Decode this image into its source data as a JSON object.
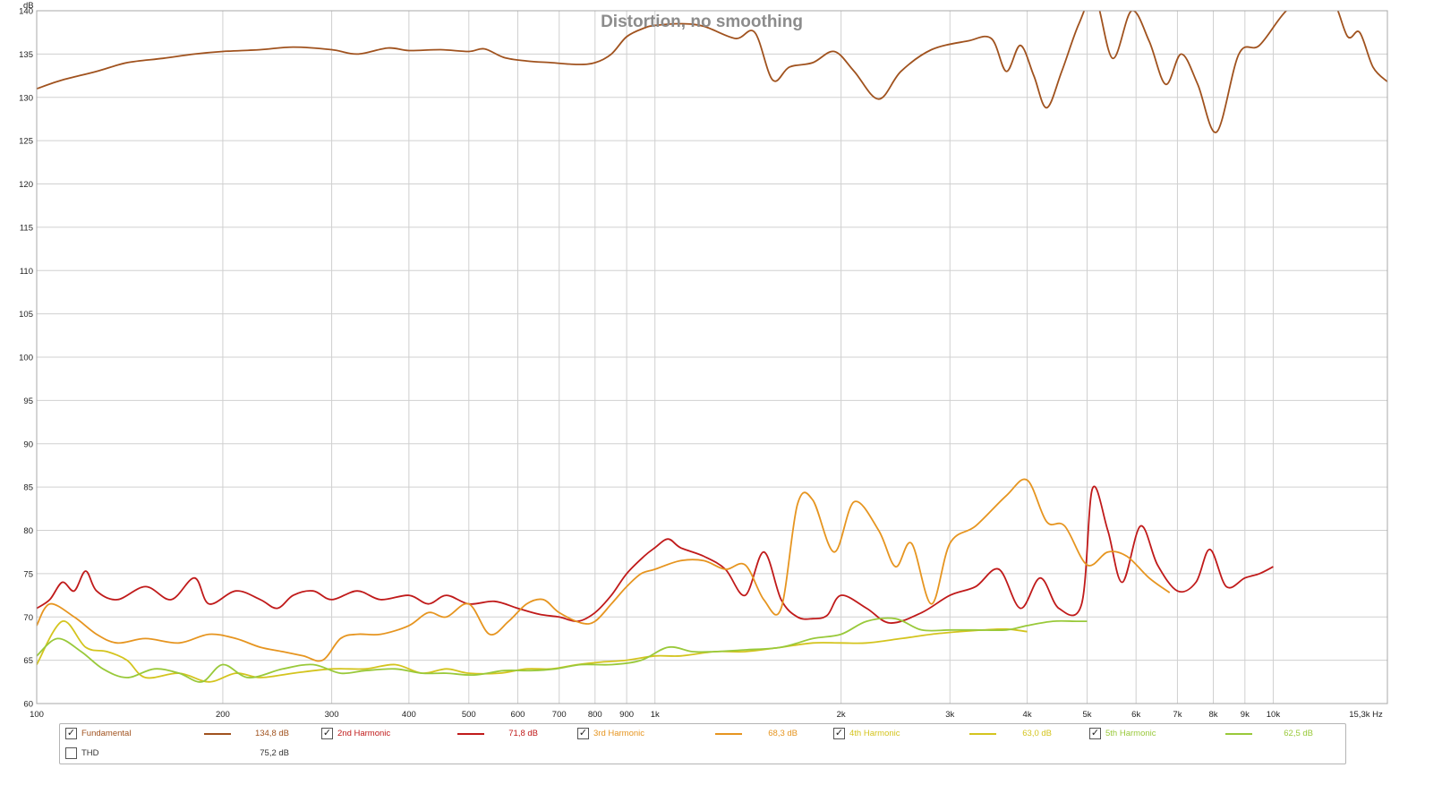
{
  "chart_data": {
    "type": "line",
    "title": "Distortion, no smoothing",
    "ylabel": "dB",
    "xunit": "Hz",
    "xscale": "log",
    "xlim": [
      100,
      15300
    ],
    "ylim": [
      60,
      140
    ],
    "grid": true,
    "yticks": [
      60,
      65,
      70,
      75,
      80,
      85,
      90,
      95,
      100,
      105,
      110,
      115,
      120,
      125,
      130,
      135,
      140
    ],
    "xticks": [
      {
        "value": 100,
        "label": "100"
      },
      {
        "value": 200,
        "label": "200"
      },
      {
        "value": 300,
        "label": "300"
      },
      {
        "value": 400,
        "label": "400"
      },
      {
        "value": 500,
        "label": "500"
      },
      {
        "value": 600,
        "label": "600"
      },
      {
        "value": 700,
        "label": "700"
      },
      {
        "value": 800,
        "label": "800"
      },
      {
        "value": 900,
        "label": "900"
      },
      {
        "value": 1000,
        "label": "1k"
      },
      {
        "value": 2000,
        "label": "2k"
      },
      {
        "value": 3000,
        "label": "3k"
      },
      {
        "value": 4000,
        "label": "4k"
      },
      {
        "value": 5000,
        "label": "5k"
      },
      {
        "value": 6000,
        "label": "6k"
      },
      {
        "value": 7000,
        "label": "7k"
      },
      {
        "value": 8000,
        "label": "8k"
      },
      {
        "value": 9000,
        "label": "9k"
      },
      {
        "value": 10000,
        "label": "10k"
      },
      {
        "value": 15300,
        "label": "15,3k Hz"
      }
    ],
    "series": [
      {
        "name": "Fundamental",
        "color": "#a0521e",
        "legend_value": "134,8 dB",
        "checked": true,
        "points": [
          [
            100,
            131
          ],
          [
            110,
            132
          ],
          [
            125,
            133
          ],
          [
            140,
            134
          ],
          [
            160,
            134.5
          ],
          [
            180,
            135
          ],
          [
            200,
            135.3
          ],
          [
            230,
            135.5
          ],
          [
            260,
            135.8
          ],
          [
            300,
            135.5
          ],
          [
            330,
            135
          ],
          [
            370,
            135.7
          ],
          [
            400,
            135.4
          ],
          [
            450,
            135.5
          ],
          [
            500,
            135.3
          ],
          [
            530,
            135.6
          ],
          [
            570,
            134.6
          ],
          [
            620,
            134.2
          ],
          [
            680,
            134
          ],
          [
            750,
            133.8
          ],
          [
            800,
            134
          ],
          [
            850,
            135
          ],
          [
            900,
            137
          ],
          [
            960,
            138
          ],
          [
            1000,
            138.3
          ],
          [
            1100,
            138.5
          ],
          [
            1200,
            138.2
          ],
          [
            1350,
            136.8
          ],
          [
            1450,
            137.5
          ],
          [
            1550,
            132
          ],
          [
            1650,
            133.5
          ],
          [
            1800,
            134
          ],
          [
            1950,
            135.3
          ],
          [
            2100,
            133
          ],
          [
            2300,
            129.8
          ],
          [
            2500,
            133
          ],
          [
            2800,
            135.5
          ],
          [
            3200,
            136.5
          ],
          [
            3500,
            136.8
          ],
          [
            3700,
            133
          ],
          [
            3900,
            136
          ],
          [
            4100,
            132.5
          ],
          [
            4300,
            128.8
          ],
          [
            4550,
            133
          ],
          [
            4850,
            138.5
          ],
          [
            5150,
            141.5
          ],
          [
            5500,
            134.5
          ],
          [
            5900,
            140
          ],
          [
            6300,
            136.5
          ],
          [
            6700,
            131.5
          ],
          [
            7100,
            135
          ],
          [
            7550,
            131.5
          ],
          [
            8100,
            126
          ],
          [
            8800,
            135
          ],
          [
            9500,
            136
          ],
          [
            10500,
            140
          ],
          [
            11500,
            141.5
          ],
          [
            12500,
            141
          ],
          [
            13200,
            137
          ],
          [
            13800,
            137.5
          ],
          [
            14500,
            133.5
          ],
          [
            15300,
            131.8
          ]
        ]
      },
      {
        "name": "2nd Harmonic",
        "color": "#c01a1a",
        "legend_value": "71,8 dB",
        "checked": true,
        "points": [
          [
            100,
            71
          ],
          [
            105,
            72
          ],
          [
            110,
            74
          ],
          [
            115,
            73
          ],
          [
            120,
            75.3
          ],
          [
            125,
            73
          ],
          [
            135,
            72
          ],
          [
            150,
            73.5
          ],
          [
            165,
            72
          ],
          [
            180,
            74.5
          ],
          [
            190,
            71.5
          ],
          [
            210,
            73
          ],
          [
            230,
            72
          ],
          [
            245,
            71
          ],
          [
            260,
            72.5
          ],
          [
            280,
            73
          ],
          [
            300,
            72
          ],
          [
            330,
            73
          ],
          [
            360,
            72
          ],
          [
            400,
            72.5
          ],
          [
            430,
            71.5
          ],
          [
            460,
            72.5
          ],
          [
            500,
            71.5
          ],
          [
            550,
            71.8
          ],
          [
            600,
            71
          ],
          [
            650,
            70.3
          ],
          [
            700,
            70
          ],
          [
            750,
            69.5
          ],
          [
            800,
            70.5
          ],
          [
            850,
            72.5
          ],
          [
            900,
            75
          ],
          [
            960,
            77
          ],
          [
            1000,
            78
          ],
          [
            1050,
            79
          ],
          [
            1100,
            78
          ],
          [
            1200,
            77
          ],
          [
            1300,
            75.5
          ],
          [
            1400,
            72.5
          ],
          [
            1500,
            77.5
          ],
          [
            1600,
            72
          ],
          [
            1700,
            70
          ],
          [
            1800,
            69.8
          ],
          [
            1900,
            70.2
          ],
          [
            2000,
            72.5
          ],
          [
            2200,
            71
          ],
          [
            2400,
            69.3
          ],
          [
            2700,
            70.5
          ],
          [
            3000,
            72.5
          ],
          [
            3300,
            73.5
          ],
          [
            3600,
            75.5
          ],
          [
            3900,
            71
          ],
          [
            4200,
            74.5
          ],
          [
            4500,
            71
          ],
          [
            4900,
            71.5
          ],
          [
            5100,
            84.8
          ],
          [
            5400,
            80
          ],
          [
            5700,
            74
          ],
          [
            6100,
            80.5
          ],
          [
            6500,
            76
          ],
          [
            7000,
            73
          ],
          [
            7500,
            74
          ],
          [
            7900,
            77.8
          ],
          [
            8400,
            73.5
          ],
          [
            9000,
            74.5
          ],
          [
            9500,
            75
          ],
          [
            10000,
            75.8
          ]
        ]
      },
      {
        "name": "3rd Harmonic",
        "color": "#e69520",
        "legend_value": "68,3 dB",
        "checked": true,
        "points": [
          [
            100,
            69
          ],
          [
            105,
            71.5
          ],
          [
            115,
            70
          ],
          [
            125,
            68
          ],
          [
            135,
            67
          ],
          [
            150,
            67.5
          ],
          [
            170,
            67
          ],
          [
            190,
            68
          ],
          [
            210,
            67.5
          ],
          [
            230,
            66.5
          ],
          [
            250,
            66
          ],
          [
            270,
            65.5
          ],
          [
            290,
            65
          ],
          [
            310,
            67.5
          ],
          [
            330,
            68
          ],
          [
            360,
            68
          ],
          [
            400,
            69
          ],
          [
            430,
            70.5
          ],
          [
            460,
            70
          ],
          [
            500,
            71.5
          ],
          [
            540,
            68
          ],
          [
            580,
            69.5
          ],
          [
            620,
            71.5
          ],
          [
            660,
            72
          ],
          [
            700,
            70.5
          ],
          [
            760,
            69.3
          ],
          [
            800,
            69.5
          ],
          [
            850,
            71.5
          ],
          [
            900,
            73.5
          ],
          [
            950,
            75
          ],
          [
            1000,
            75.5
          ],
          [
            1100,
            76.5
          ],
          [
            1200,
            76.5
          ],
          [
            1300,
            75.5
          ],
          [
            1400,
            76
          ],
          [
            1500,
            72
          ],
          [
            1600,
            71
          ],
          [
            1700,
            83
          ],
          [
            1800,
            83.5
          ],
          [
            1950,
            77.5
          ],
          [
            2100,
            83.3
          ],
          [
            2300,
            80
          ],
          [
            2450,
            75.8
          ],
          [
            2600,
            78.5
          ],
          [
            2800,
            71.5
          ],
          [
            3000,
            78.5
          ],
          [
            3300,
            80.5
          ],
          [
            3700,
            84
          ],
          [
            4000,
            85.8
          ],
          [
            4300,
            81
          ],
          [
            4600,
            80.5
          ],
          [
            5000,
            76
          ],
          [
            5400,
            77.5
          ],
          [
            5800,
            77
          ],
          [
            6300,
            74.5
          ],
          [
            6800,
            72.8
          ]
        ]
      },
      {
        "name": "4th Harmonic",
        "color": "#d4c41e",
        "legend_value": "63,0 dB",
        "checked": true,
        "points": [
          [
            100,
            64.5
          ],
          [
            110,
            69.5
          ],
          [
            120,
            66.5
          ],
          [
            130,
            66
          ],
          [
            140,
            65
          ],
          [
            150,
            63
          ],
          [
            170,
            63.5
          ],
          [
            190,
            62.5
          ],
          [
            210,
            63.5
          ],
          [
            230,
            63
          ],
          [
            260,
            63.5
          ],
          [
            300,
            64
          ],
          [
            340,
            64
          ],
          [
            380,
            64.5
          ],
          [
            420,
            63.5
          ],
          [
            460,
            64
          ],
          [
            500,
            63.5
          ],
          [
            560,
            63.5
          ],
          [
            620,
            64
          ],
          [
            680,
            64
          ],
          [
            750,
            64.5
          ],
          [
            820,
            64.8
          ],
          [
            900,
            65
          ],
          [
            1000,
            65.5
          ],
          [
            1100,
            65.5
          ],
          [
            1250,
            66
          ],
          [
            1400,
            66
          ],
          [
            1600,
            66.5
          ],
          [
            1800,
            67
          ],
          [
            2000,
            67
          ],
          [
            2200,
            67
          ],
          [
            2500,
            67.5
          ],
          [
            2800,
            68
          ],
          [
            3100,
            68.3
          ],
          [
            3400,
            68.5
          ],
          [
            3700,
            68.6
          ],
          [
            4000,
            68.3
          ]
        ]
      },
      {
        "name": "5th Harmonic",
        "color": "#99c93a",
        "legend_value": "62,5 dB",
        "checked": true,
        "points": [
          [
            100,
            65.5
          ],
          [
            108,
            67.5
          ],
          [
            118,
            66
          ],
          [
            128,
            64
          ],
          [
            140,
            63
          ],
          [
            155,
            64
          ],
          [
            170,
            63.5
          ],
          [
            185,
            62.5
          ],
          [
            200,
            64.5
          ],
          [
            220,
            63
          ],
          [
            250,
            64
          ],
          [
            280,
            64.5
          ],
          [
            310,
            63.5
          ],
          [
            340,
            63.8
          ],
          [
            380,
            64
          ],
          [
            420,
            63.5
          ],
          [
            460,
            63.5
          ],
          [
            510,
            63.3
          ],
          [
            570,
            63.8
          ],
          [
            630,
            63.8
          ],
          [
            690,
            64
          ],
          [
            760,
            64.5
          ],
          [
            850,
            64.5
          ],
          [
            950,
            65
          ],
          [
            1050,
            66.5
          ],
          [
            1150,
            66
          ],
          [
            1250,
            66
          ],
          [
            1400,
            66.2
          ],
          [
            1600,
            66.5
          ],
          [
            1800,
            67.5
          ],
          [
            2000,
            68
          ],
          [
            2200,
            69.5
          ],
          [
            2450,
            69.8
          ],
          [
            2700,
            68.5
          ],
          [
            3000,
            68.5
          ],
          [
            3300,
            68.5
          ],
          [
            3700,
            68.5
          ],
          [
            4000,
            69
          ],
          [
            4400,
            69.5
          ],
          [
            4800,
            69.5
          ],
          [
            5000,
            69.5
          ]
        ]
      },
      {
        "name": "THD",
        "color": "#000000",
        "legend_value": "75,2 dB",
        "checked": false,
        "points": []
      }
    ]
  }
}
